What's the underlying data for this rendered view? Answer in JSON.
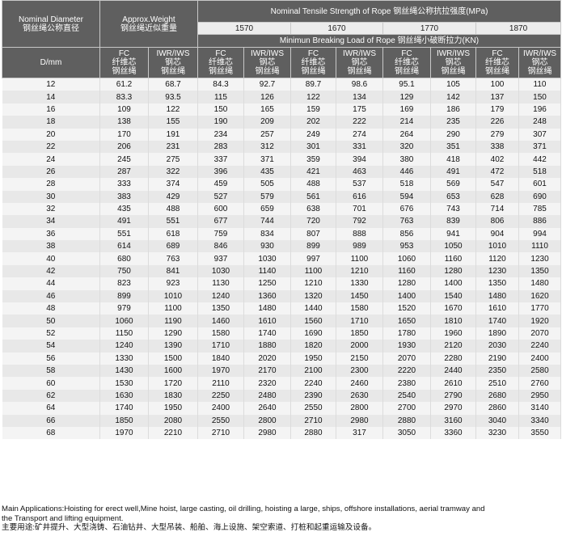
{
  "header": {
    "nominal_diameter_en": "Nominal Diameter",
    "nominal_diameter_cn": "钢丝绳公称直径",
    "weight_en": "Approx.Weight",
    "weight_cn": "钢丝绳近似重量",
    "tensile_title": "Nominal Tensile Strength of Rope  钢丝绳公称抗拉强度(MPa)",
    "grades": [
      "1570",
      "1670",
      "1770",
      "1870"
    ],
    "breaking_title": "Minimun Breaking Load of Rope  钢丝绳小破断拉力(KN)",
    "unit": "D/mm",
    "fc_en": "FC",
    "fc_cn1": "纤维芯",
    "fc_cn2": "钢丝绳",
    "iwr_en": "IWR/IWS",
    "iwr_cn1": "钢芯",
    "iwr_cn2": "钢丝绳"
  },
  "rows": [
    [
      "12",
      "61.2",
      "68.7",
      "84.3",
      "92.7",
      "89.7",
      "98.6",
      "95.1",
      "105",
      "100",
      "110"
    ],
    [
      "14",
      "83.3",
      "93.5",
      "115",
      "126",
      "122",
      "134",
      "129",
      "142",
      "137",
      "150"
    ],
    [
      "16",
      "109",
      "122",
      "150",
      "165",
      "159",
      "175",
      "169",
      "186",
      "179",
      "196"
    ],
    [
      "18",
      "138",
      "155",
      "190",
      "209",
      "202",
      "222",
      "214",
      "235",
      "226",
      "248"
    ],
    [
      "20",
      "170",
      "191",
      "234",
      "257",
      "249",
      "274",
      "264",
      "290",
      "279",
      "307"
    ],
    [
      "22",
      "206",
      "231",
      "283",
      "312",
      "301",
      "331",
      "320",
      "351",
      "338",
      "371"
    ],
    [
      "24",
      "245",
      "275",
      "337",
      "371",
      "359",
      "394",
      "380",
      "418",
      "402",
      "442"
    ],
    [
      "26",
      "287",
      "322",
      "396",
      "435",
      "421",
      "463",
      "446",
      "491",
      "472",
      "518"
    ],
    [
      "28",
      "333",
      "374",
      "459",
      "505",
      "488",
      "537",
      "518",
      "569",
      "547",
      "601"
    ],
    [
      "30",
      "383",
      "429",
      "527",
      "579",
      "561",
      "616",
      "594",
      "653",
      "628",
      "690"
    ],
    [
      "32",
      "435",
      "488",
      "600",
      "659",
      "638",
      "701",
      "676",
      "743",
      "714",
      "785"
    ],
    [
      "34",
      "491",
      "551",
      "677",
      "744",
      "720",
      "792",
      "763",
      "839",
      "806",
      "886"
    ],
    [
      "36",
      "551",
      "618",
      "759",
      "834",
      "807",
      "888",
      "856",
      "941",
      "904",
      "994"
    ],
    [
      "38",
      "614",
      "689",
      "846",
      "930",
      "899",
      "989",
      "953",
      "1050",
      "1010",
      "1110"
    ],
    [
      "40",
      "680",
      "763",
      "937",
      "1030",
      "997",
      "1100",
      "1060",
      "1160",
      "1120",
      "1230"
    ],
    [
      "42",
      "750",
      "841",
      "1030",
      "1140",
      "1100",
      "1210",
      "1160",
      "1280",
      "1230",
      "1350"
    ],
    [
      "44",
      "823",
      "923",
      "1130",
      "1250",
      "1210",
      "1330",
      "1280",
      "1400",
      "1350",
      "1480"
    ],
    [
      "46",
      "899",
      "1010",
      "1240",
      "1360",
      "1320",
      "1450",
      "1400",
      "1540",
      "1480",
      "1620"
    ],
    [
      "48",
      "979",
      "1100",
      "1350",
      "1480",
      "1440",
      "1580",
      "1520",
      "1670",
      "1610",
      "1770"
    ],
    [
      "50",
      "1060",
      "1190",
      "1460",
      "1610",
      "1560",
      "1710",
      "1650",
      "1810",
      "1740",
      "1920"
    ],
    [
      "52",
      "1150",
      "1290",
      "1580",
      "1740",
      "1690",
      "1850",
      "1780",
      "1960",
      "1890",
      "2070"
    ],
    [
      "54",
      "1240",
      "1390",
      "1710",
      "1880",
      "1820",
      "2000",
      "1930",
      "2120",
      "2030",
      "2240"
    ],
    [
      "56",
      "1330",
      "1500",
      "1840",
      "2020",
      "1950",
      "2150",
      "2070",
      "2280",
      "2190",
      "2400"
    ],
    [
      "58",
      "1430",
      "1600",
      "1970",
      "2170",
      "2100",
      "2300",
      "2220",
      "2440",
      "2350",
      "2580"
    ],
    [
      "60",
      "1530",
      "1720",
      "2110",
      "2320",
      "2240",
      "2460",
      "2380",
      "2610",
      "2510",
      "2760"
    ],
    [
      "62",
      "1630",
      "1830",
      "2250",
      "2480",
      "2390",
      "2630",
      "2540",
      "2790",
      "2680",
      "2950"
    ],
    [
      "64",
      "1740",
      "1950",
      "2400",
      "2640",
      "2550",
      "2800",
      "2700",
      "2970",
      "2860",
      "3140"
    ],
    [
      "66",
      "1850",
      "2080",
      "2550",
      "2800",
      "2710",
      "2980",
      "2880",
      "3160",
      "3040",
      "3340"
    ],
    [
      "68",
      "1970",
      "2210",
      "2710",
      "2980",
      "2880",
      "317",
      "3050",
      "3360",
      "3230",
      "3550"
    ]
  ],
  "notes": {
    "line1": "Main Applications:Hoisting for erect well,Mine hoist, large casting, oil drilling, hoisting a large, ships, offshore installations, aerial tramway and",
    "line2": " the Transport and lifting equipment.",
    "line3": "主要用途:矿井提升、大型浇铸、石油钻井、大型吊装、船舶、海上设施、架空索道、打桩和起重运输及设备。"
  },
  "colors": {
    "header_dark": "#5f5f5f",
    "header_light": "#ececec",
    "row_light": "#f4f4f4",
    "row_dark": "#e8e8e8"
  }
}
